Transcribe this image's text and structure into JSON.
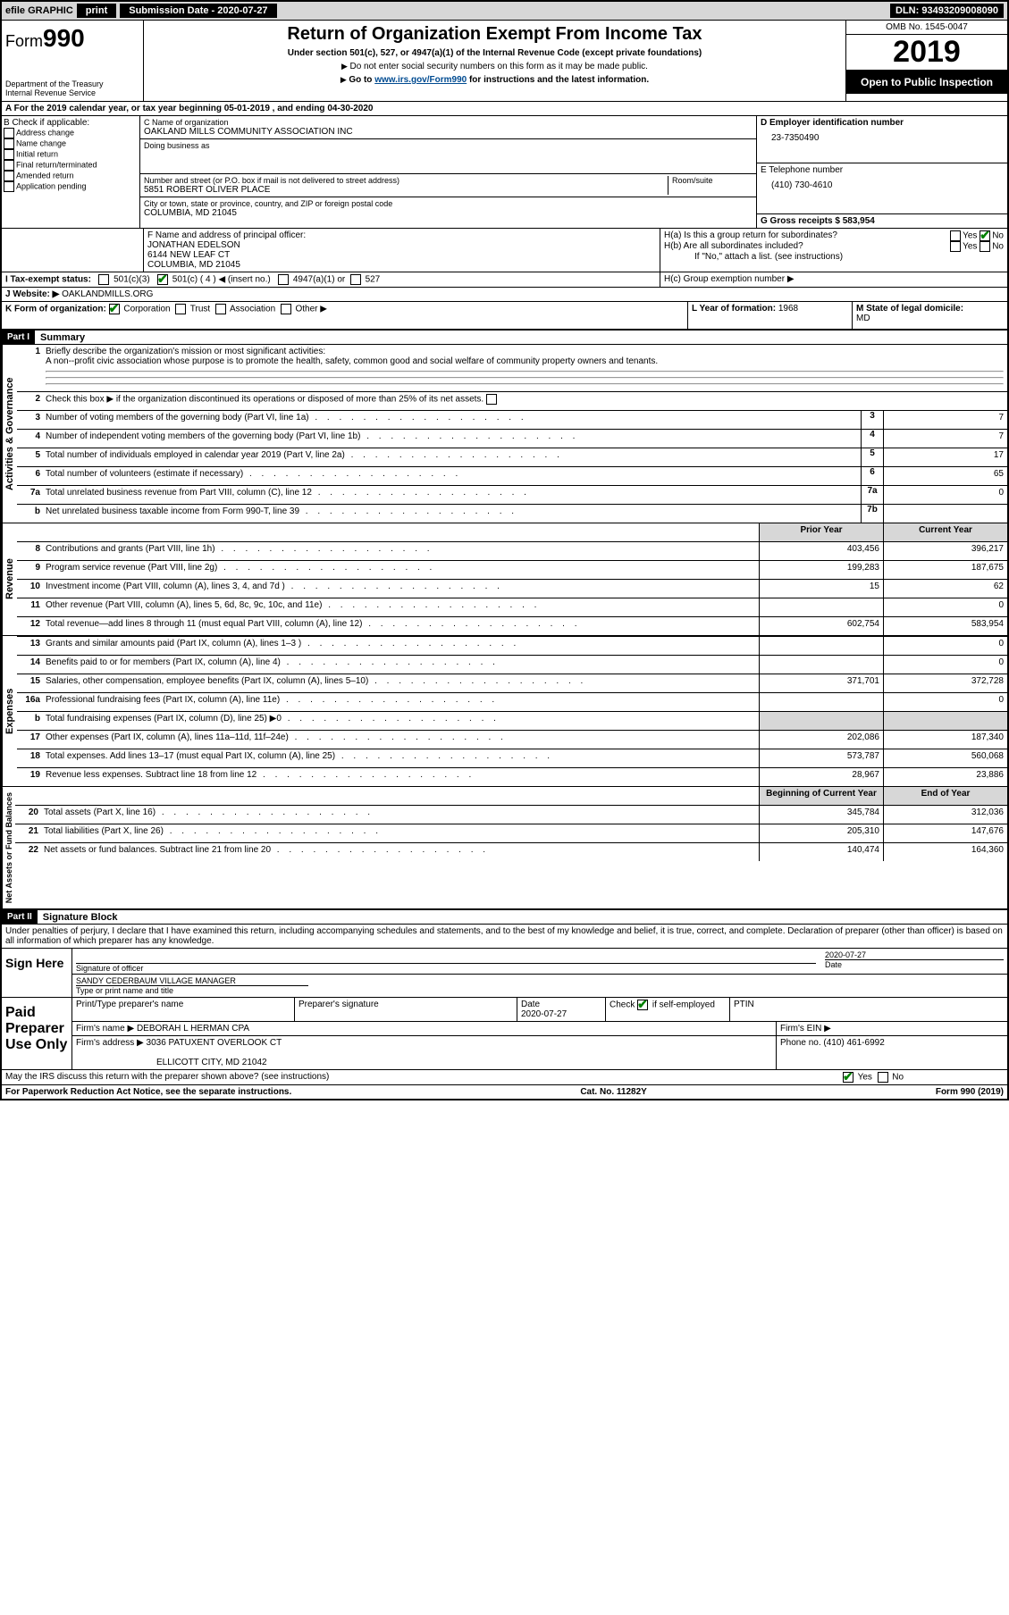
{
  "topbar": {
    "efile": "efile GRAPHIC",
    "print": "print",
    "subdate_label": "Submission Date - ",
    "subdate": "2020-07-27",
    "dln_label": "DLN: ",
    "dln": "93493209008090"
  },
  "header": {
    "form_prefix": "Form",
    "form_number": "990",
    "dept": "Department of the Treasury\nInternal Revenue Service",
    "title": "Return of Organization Exempt From Income Tax",
    "sub1": "Under section 501(c), 527, or 4947(a)(1) of the Internal Revenue Code (except private foundations)",
    "sub2_arrow": "Do not enter social security numbers on this form as it may be made public.",
    "sub3_a": "Go to ",
    "sub3_link": "www.irs.gov/Form990",
    "sub3_b": " for instructions and the latest information.",
    "omb": "OMB No. 1545-0047",
    "year": "2019",
    "opentopublic": "Open to Public Inspection"
  },
  "rowA": "A For the 2019 calendar year, or tax year beginning 05-01-2019    , and ending 04-30-2020",
  "boxB": {
    "label": "B Check if applicable:",
    "opts": [
      "Address change",
      "Name change",
      "Initial return",
      "Final return/terminated",
      "Amended return",
      "Application pending"
    ]
  },
  "boxC": {
    "name_label": "C Name of organization",
    "name": "OAKLAND MILLS COMMUNITY ASSOCIATION INC",
    "dba_label": "Doing business as",
    "addr_label": "Number and street (or P.O. box if mail is not delivered to street address)",
    "addr": "5851 ROBERT OLIVER PLACE",
    "room_label": "Room/suite",
    "city_label": "City or town, state or province, country, and ZIP or foreign postal code",
    "city": "COLUMBIA, MD  21045"
  },
  "boxD": {
    "label": "D Employer identification number",
    "ein": "23-7350490"
  },
  "boxE": {
    "label": "E Telephone number",
    "phone": "(410) 730-4610"
  },
  "boxG": {
    "label": "G Gross receipts $ ",
    "val": "583,954"
  },
  "boxF": {
    "label": "F Name and address of principal officer:",
    "name": "JONATHAN EDELSON",
    "addr1": "6144 NEW LEAF CT",
    "addr2": "COLUMBIA, MD  21045"
  },
  "boxH": {
    "a": "H(a)  Is this a group return for subordinates?",
    "b": "H(b)  Are all subordinates included?",
    "b_note": "If \"No,\" attach a list. (see instructions)",
    "c": "H(c)  Group exemption number ▶",
    "yes": "Yes",
    "no": "No"
  },
  "boxI": {
    "label": "I Tax-exempt status:",
    "o1": "501(c)(3)",
    "o2": "501(c) ( 4 ) ◀ (insert no.)",
    "o3": "4947(a)(1) or",
    "o4": "527"
  },
  "boxJ": {
    "label": "J Website: ▶",
    "val": "OAKLANDMILLS.ORG"
  },
  "boxK": {
    "label": "K Form of organization:",
    "o1": "Corporation",
    "o2": "Trust",
    "o3": "Association",
    "o4": "Other ▶"
  },
  "boxL": {
    "label": "L Year of formation: ",
    "val": "1968"
  },
  "boxM": {
    "label": "M State of legal domicile:",
    "val": "MD"
  },
  "part1": {
    "title": "Part I",
    "subtitle": "Summary",
    "q1": "Briefly describe the organization's mission or most significant activities:",
    "q1_ans": "A non--profit civic association whose purpose is to promote the health, safety, common good and social welfare of community property owners and tenants.",
    "q2": "Check this box ▶        if the organization discontinued its operations or disposed of more than 25% of its net assets.",
    "lines_gov": [
      {
        "n": "3",
        "d": "Number of voting members of the governing body (Part VI, line 1a)",
        "box": "3",
        "v": "7"
      },
      {
        "n": "4",
        "d": "Number of independent voting members of the governing body (Part VI, line 1b)",
        "box": "4",
        "v": "7"
      },
      {
        "n": "5",
        "d": "Total number of individuals employed in calendar year 2019 (Part V, line 2a)",
        "box": "5",
        "v": "17"
      },
      {
        "n": "6",
        "d": "Total number of volunteers (estimate if necessary)",
        "box": "6",
        "v": "65"
      },
      {
        "n": "7a",
        "d": "Total unrelated business revenue from Part VIII, column (C), line 12",
        "box": "7a",
        "v": "0"
      },
      {
        "n": "b",
        "d": "Net unrelated business taxable income from Form 990-T, line 39",
        "box": "7b",
        "v": ""
      }
    ],
    "hdr_prior": "Prior Year",
    "hdr_curr": "Current Year",
    "lines_rev": [
      {
        "n": "8",
        "d": "Contributions and grants (Part VIII, line 1h)",
        "p": "403,456",
        "c": "396,217"
      },
      {
        "n": "9",
        "d": "Program service revenue (Part VIII, line 2g)",
        "p": "199,283",
        "c": "187,675"
      },
      {
        "n": "10",
        "d": "Investment income (Part VIII, column (A), lines 3, 4, and 7d )",
        "p": "15",
        "c": "62"
      },
      {
        "n": "11",
        "d": "Other revenue (Part VIII, column (A), lines 5, 6d, 8c, 9c, 10c, and 11e)",
        "p": "",
        "c": "0"
      },
      {
        "n": "12",
        "d": "Total revenue—add lines 8 through 11 (must equal Part VIII, column (A), line 12)",
        "p": "602,754",
        "c": "583,954"
      }
    ],
    "lines_exp": [
      {
        "n": "13",
        "d": "Grants and similar amounts paid (Part IX, column (A), lines 1–3 )",
        "p": "",
        "c": "0"
      },
      {
        "n": "14",
        "d": "Benefits paid to or for members (Part IX, column (A), line 4)",
        "p": "",
        "c": "0"
      },
      {
        "n": "15",
        "d": "Salaries, other compensation, employee benefits (Part IX, column (A), lines 5–10)",
        "p": "371,701",
        "c": "372,728"
      },
      {
        "n": "16a",
        "d": "Professional fundraising fees (Part IX, column (A), line 11e)",
        "p": "",
        "c": "0"
      },
      {
        "n": "b",
        "d": "Total fundraising expenses (Part IX, column (D), line 25) ▶0",
        "p": "grey",
        "c": "grey"
      },
      {
        "n": "17",
        "d": "Other expenses (Part IX, column (A), lines 11a–11d, 11f–24e)",
        "p": "202,086",
        "c": "187,340"
      },
      {
        "n": "18",
        "d": "Total expenses. Add lines 13–17 (must equal Part IX, column (A), line 25)",
        "p": "573,787",
        "c": "560,068"
      },
      {
        "n": "19",
        "d": "Revenue less expenses. Subtract line 18 from line 12",
        "p": "28,967",
        "c": "23,886"
      }
    ],
    "hdr_beg": "Beginning of Current Year",
    "hdr_end": "End of Year",
    "lines_net": [
      {
        "n": "20",
        "d": "Total assets (Part X, line 16)",
        "p": "345,784",
        "c": "312,036"
      },
      {
        "n": "21",
        "d": "Total liabilities (Part X, line 26)",
        "p": "205,310",
        "c": "147,676"
      },
      {
        "n": "22",
        "d": "Net assets or fund balances. Subtract line 21 from line 20",
        "p": "140,474",
        "c": "164,360"
      }
    ],
    "vlabels": {
      "gov": "Activities & Governance",
      "rev": "Revenue",
      "exp": "Expenses",
      "net": "Net Assets or Fund Balances"
    }
  },
  "part2": {
    "title": "Part II",
    "subtitle": "Signature Block",
    "perjury": "Under penalties of perjury, I declare that I have examined this return, including accompanying schedules and statements, and to the best of my knowledge and belief, it is true, correct, and complete. Declaration of preparer (other than officer) is based on all information of which preparer has any knowledge.",
    "sign_here": "Sign Here",
    "sig_officer": "Signature of officer",
    "sig_date": "2020-07-27",
    "date_label": "Date",
    "officer_name": "SANDY CEDERBAUM  VILLAGE MANAGER",
    "officer_label": "Type or print name and title",
    "paid": "Paid Preparer Use Only",
    "ptname_label": "Print/Type preparer's name",
    "psig_label": "Preparer's signature",
    "pdate": "2020-07-27",
    "check_label": "Check         if self-employed",
    "ptin_label": "PTIN",
    "firm_label": "Firm's name    ▶ ",
    "firm_name": "DEBORAH L HERMAN CPA",
    "firm_ein": "Firm's EIN ▶",
    "firm_addr_label": "Firm's address ▶ ",
    "firm_addr1": "3036 PATUXENT OVERLOOK CT",
    "firm_addr2": "ELLICOTT CITY, MD  21042",
    "firm_phone_label": "Phone no. ",
    "firm_phone": "(410) 461-6992",
    "discuss": "May the IRS discuss this return with the preparer shown above? (see instructions)"
  },
  "footer": {
    "left": "For Paperwork Reduction Act Notice, see the separate instructions.",
    "mid": "Cat. No. 11282Y",
    "right": "Form 990 (2019)"
  }
}
